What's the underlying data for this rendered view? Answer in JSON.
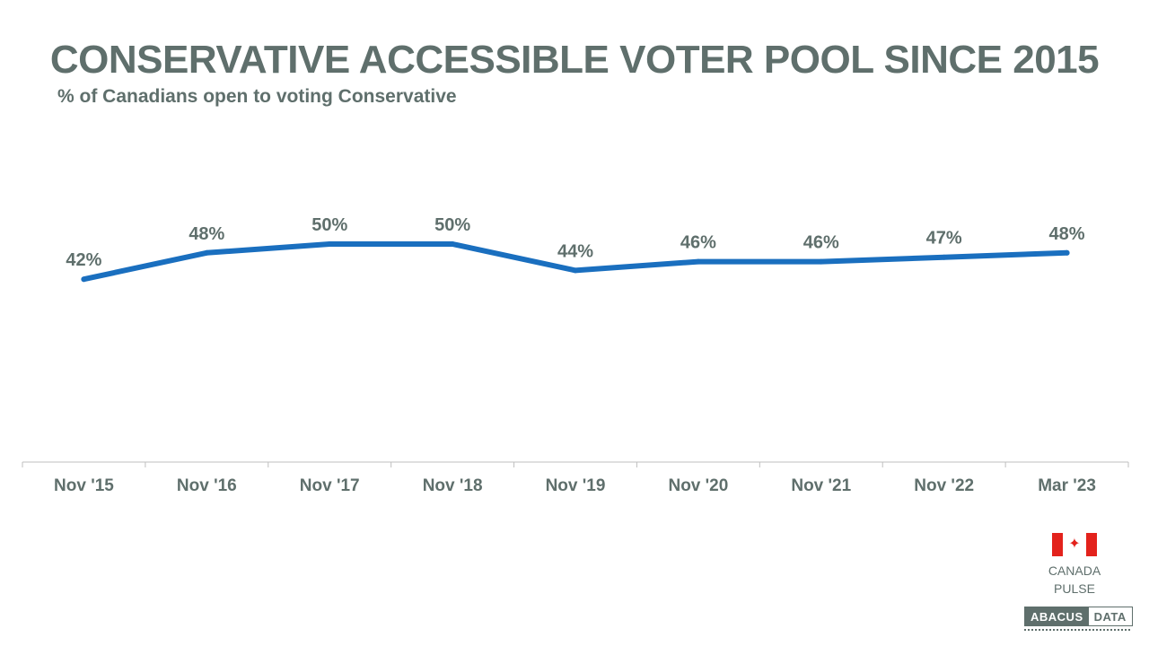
{
  "title": "CONSERVATIVE ACCESSIBLE VOTER POOL SINCE 2015",
  "subtitle": "% of Canadians open to voting Conservative",
  "chart_data": {
    "type": "line",
    "categories": [
      "Nov '15",
      "Nov '16",
      "Nov '17",
      "Nov '18",
      "Nov '19",
      "Nov '20",
      "Nov '21",
      "Nov '22",
      "Mar '23"
    ],
    "series": [
      {
        "values": [
          42,
          48,
          50,
          50,
          44,
          46,
          46,
          47,
          48
        ],
        "labels": [
          "42%",
          "48%",
          "50%",
          "50%",
          "44%",
          "46%",
          "46%",
          "47%",
          "48%"
        ],
        "color": "#1a6fbf"
      }
    ],
    "ylim": [
      0,
      100
    ],
    "grid": false,
    "xlabel": "",
    "ylabel": ""
  },
  "branding": {
    "pulse_line1": "CANADA",
    "pulse_line2": "PULSE",
    "logo_left": "ABACUS",
    "logo_right": "DATA",
    "flag_glyph": "✦"
  },
  "colors": {
    "text": "#5f6f6c",
    "line": "#1a6fbf",
    "flag_red": "#e3221c"
  }
}
